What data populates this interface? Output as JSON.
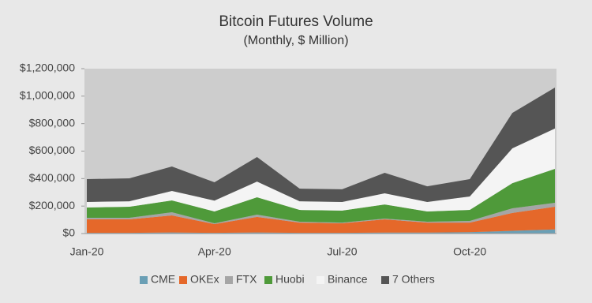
{
  "chart_data": {
    "type": "stacked-area",
    "title": "Bitcoin Futures Volume",
    "subtitle": "(Monthly, $ Million)",
    "categories": [
      "Jan-20",
      null,
      null,
      "Apr-20",
      null,
      null,
      "Jul-20",
      null,
      null,
      "Oct-20",
      null,
      null
    ],
    "series": [
      {
        "name": "CME",
        "color": "#6a9fb5",
        "values": [
          5000,
          5000,
          8000,
          5000,
          8000,
          5000,
          5000,
          7000,
          7000,
          10000,
          20000,
          30000
        ]
      },
      {
        "name": "OKEx",
        "color": "#e5682a",
        "values": [
          98000,
          98000,
          124000,
          64000,
          113000,
          75000,
          70000,
          96000,
          73000,
          70000,
          130000,
          165000
        ]
      },
      {
        "name": "FTX",
        "color": "#a5a5a5",
        "values": [
          12000,
          12000,
          23000,
          6000,
          17000,
          6000,
          5000,
          6000,
          6000,
          12000,
          34000,
          29000
        ]
      },
      {
        "name": "Huobi",
        "color": "#4f9a3a",
        "values": [
          75000,
          80000,
          86000,
          86000,
          126000,
          86000,
          87000,
          103000,
          75000,
          80000,
          183000,
          247000
        ]
      },
      {
        "name": "Binance",
        "color": "#f4f4f4",
        "values": [
          40000,
          40000,
          69000,
          79000,
          114000,
          63000,
          63000,
          81000,
          69000,
          98000,
          253000,
          293000
        ]
      },
      {
        "name": "7 Others",
        "color": "#555555",
        "values": [
          166000,
          167000,
          178000,
          133000,
          179000,
          92000,
          92000,
          149000,
          114000,
          126000,
          258000,
          298000
        ]
      }
    ],
    "ylim": [
      0,
      1200000
    ],
    "yticks": [
      {
        "value": 0,
        "label": "$0"
      },
      {
        "value": 200000,
        "label": "$200,000"
      },
      {
        "value": 400000,
        "label": "$400,000"
      },
      {
        "value": 600000,
        "label": "$600,000"
      },
      {
        "value": 800000,
        "label": "$800,000"
      },
      {
        "value": 1000000,
        "label": "$1,000,000"
      },
      {
        "value": 1200000,
        "label": "$1,200,000"
      }
    ],
    "legend": "bottom"
  }
}
